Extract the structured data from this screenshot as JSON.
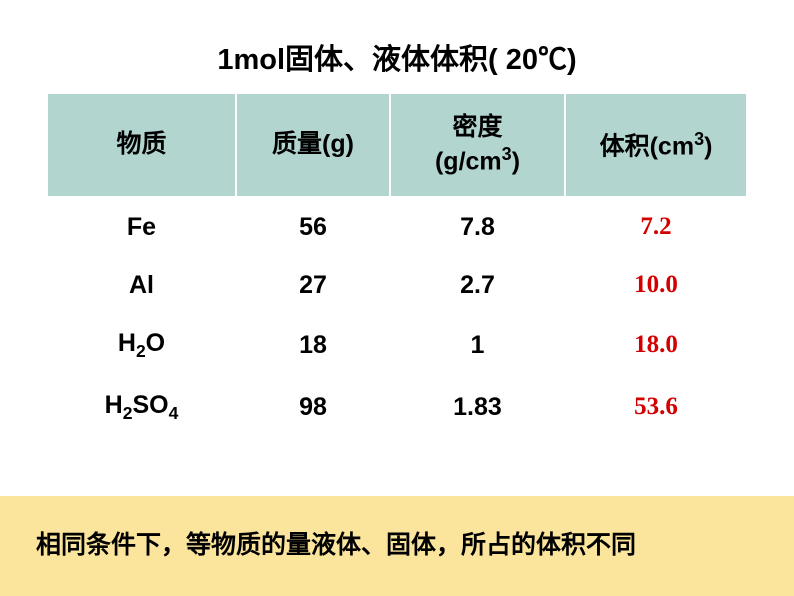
{
  "title_pre": "1mol固体、液体体积( 20",
  "title_unit": "℃",
  "title_post": ")",
  "headers": {
    "substance": "物质",
    "mass": "质量(g)",
    "density_line1": "密度",
    "density_line2": "(g/cm",
    "density_sup": "3",
    "density_close": ")",
    "volume_pre": "体积(cm",
    "volume_sup": "3",
    "volume_post": ")"
  },
  "rows": [
    {
      "substance_html": "Fe",
      "mass": "56",
      "density": "7.8",
      "volume": "7.2"
    },
    {
      "substance_html": "Al",
      "mass": "27",
      "density": "2.7",
      "volume": "10.0"
    },
    {
      "substance_html": "H<sub>2</sub>O",
      "mass": "18",
      "density": "1",
      "volume": "18.0"
    },
    {
      "substance_html": "H<sub>2</sub>SO<sub>4</sub>",
      "mass": "98",
      "density": "1.83",
      "volume": "53.6"
    }
  ],
  "note": "相同条件下，等物质的量液体、固体，所占的体积不同",
  "styles": {
    "header_bg": "#b2d5d0",
    "note_bg": "#fbe49c",
    "volume_color": "#d40000",
    "text_color": "#000000",
    "table_border": "#ffffff",
    "title_fontsize": 29,
    "cell_fontsize": 25,
    "note_fontsize": 25,
    "col_widths_pct": [
      27,
      22,
      25,
      26
    ]
  }
}
